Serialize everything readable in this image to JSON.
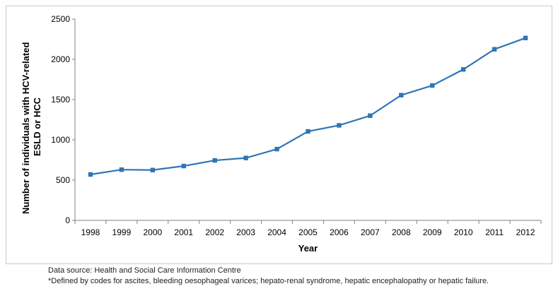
{
  "chart_data": {
    "type": "line",
    "title": "",
    "xlabel": "Year",
    "ylabel_lines": [
      "Number of individuals with HCV-related",
      "ESLD or HCC"
    ],
    "categories": [
      "1998",
      "1999",
      "2000",
      "2001",
      "2002",
      "2003",
      "2004",
      "2005",
      "2006",
      "2007",
      "2008",
      "2009",
      "2010",
      "2011",
      "2012"
    ],
    "series": [
      {
        "values": [
          570,
          630,
          625,
          675,
          745,
          775,
          885,
          1105,
          1180,
          1300,
          1555,
          1675,
          1875,
          2125,
          2265
        ],
        "color": "#2e75b6"
      }
    ],
    "ylim": [
      0,
      2500
    ],
    "yticks": [
      0,
      500,
      1000,
      1500,
      2000,
      2500
    ],
    "grid": false,
    "legend": "none",
    "marker": "square"
  },
  "notes": {
    "source": "Data source:  Health and Social Care Information Centre",
    "definition": "*Defined by codes for ascites, bleeding oesophageal  varices; hepato-renal  syndrome, hepatic encephalopathy  or hepatic failure."
  }
}
